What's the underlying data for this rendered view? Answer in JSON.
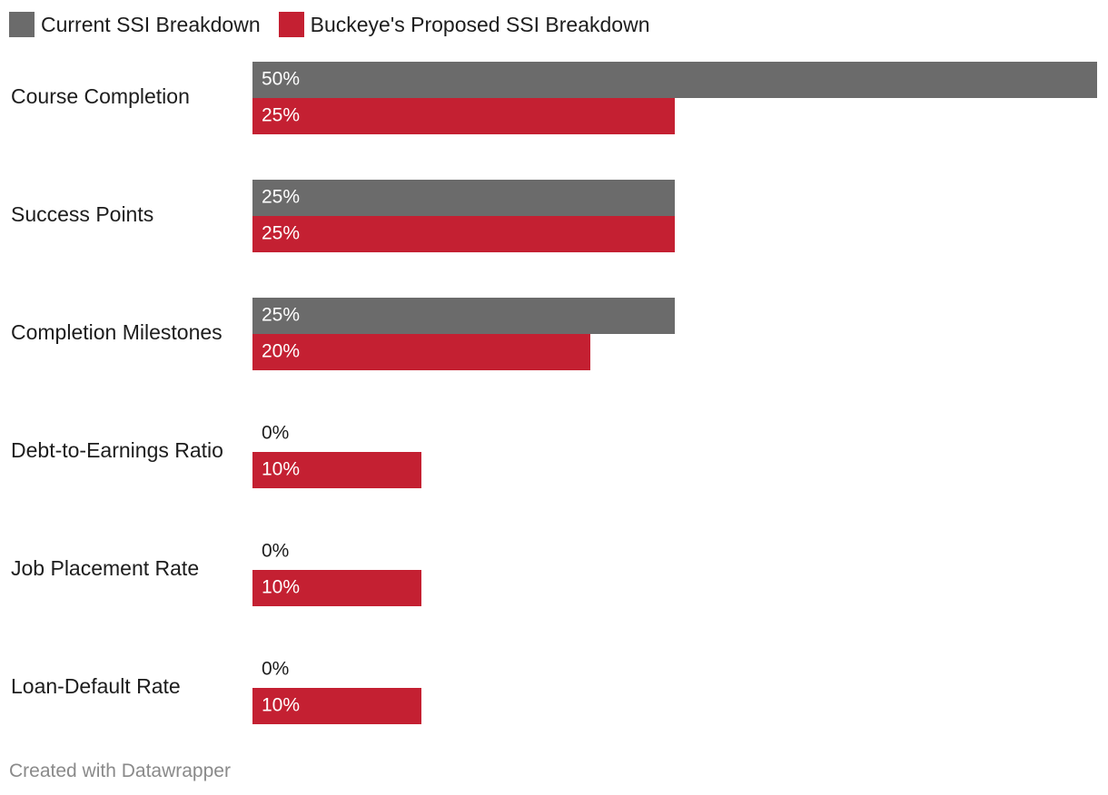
{
  "chart_data": {
    "type": "bar",
    "orientation": "horizontal",
    "title": "",
    "categories": [
      "Course Completion",
      "Success Points",
      "Completion Milestones",
      "Debt-to-Earnings Ratio",
      "Job Placement Rate",
      "Loan-Default Rate"
    ],
    "series": [
      {
        "name": "Current SSI Breakdown",
        "color": "#6b6b6b",
        "values": [
          50,
          25,
          25,
          0,
          0,
          0
        ],
        "labels": [
          "50%",
          "25%",
          "25%",
          "0%",
          "0%",
          "0%"
        ]
      },
      {
        "name": "Buckeye's Proposed SSI Breakdown",
        "color": "#c42032",
        "values": [
          25,
          25,
          20,
          10,
          10,
          10
        ],
        "labels": [
          "25%",
          "25%",
          "20%",
          "10%",
          "10%",
          "10%"
        ]
      }
    ],
    "xlim": [
      0,
      50
    ],
    "value_suffix": "%",
    "grid": false,
    "legend_position": "top-left"
  },
  "footer": {
    "credit": "Created with Datawrapper"
  }
}
